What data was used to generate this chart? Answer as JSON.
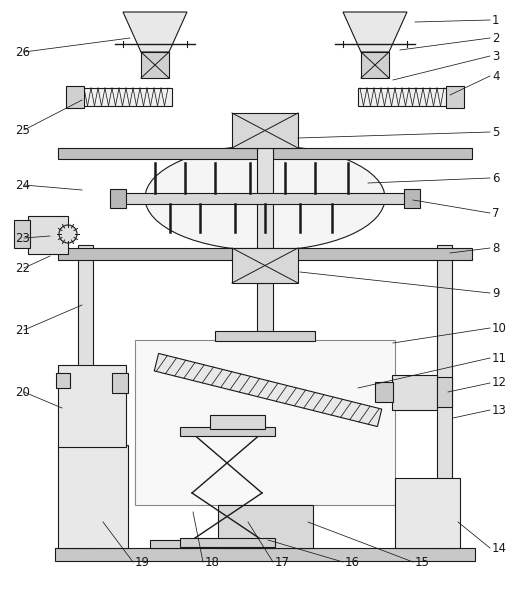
{
  "fig_w": 5.3,
  "fig_h": 5.95,
  "dpi": 100,
  "bg": "#ffffff",
  "lc": "#1a1a1a",
  "lw": 0.8,
  "leaders": [
    [
      "1",
      492,
      20,
      415,
      22
    ],
    [
      "2",
      492,
      38,
      400,
      50
    ],
    [
      "3",
      492,
      56,
      393,
      80
    ],
    [
      "4",
      492,
      76,
      450,
      95
    ],
    [
      "5",
      492,
      132,
      298,
      138
    ],
    [
      "6",
      492,
      178,
      368,
      183
    ],
    [
      "7",
      492,
      213,
      413,
      200
    ],
    [
      "8",
      492,
      248,
      450,
      253
    ],
    [
      "9",
      492,
      293,
      300,
      272
    ],
    [
      "10",
      492,
      328,
      393,
      343
    ],
    [
      "11",
      492,
      358,
      358,
      388
    ],
    [
      "12",
      492,
      383,
      448,
      392
    ],
    [
      "13",
      492,
      410,
      453,
      418
    ],
    [
      "14",
      492,
      548,
      458,
      522
    ],
    [
      "15",
      415,
      562,
      308,
      522
    ],
    [
      "16",
      345,
      562,
      268,
      540
    ],
    [
      "17",
      275,
      562,
      248,
      522
    ],
    [
      "18",
      205,
      562,
      193,
      512
    ],
    [
      "19",
      135,
      562,
      103,
      522
    ],
    [
      "20",
      15,
      392,
      62,
      408
    ],
    [
      "21",
      15,
      330,
      82,
      305
    ],
    [
      "22",
      15,
      268,
      50,
      256
    ],
    [
      "23",
      15,
      238,
      50,
      236
    ],
    [
      "24",
      15,
      185,
      82,
      190
    ],
    [
      "25",
      15,
      130,
      82,
      100
    ],
    [
      "26",
      15,
      52,
      130,
      38
    ]
  ]
}
